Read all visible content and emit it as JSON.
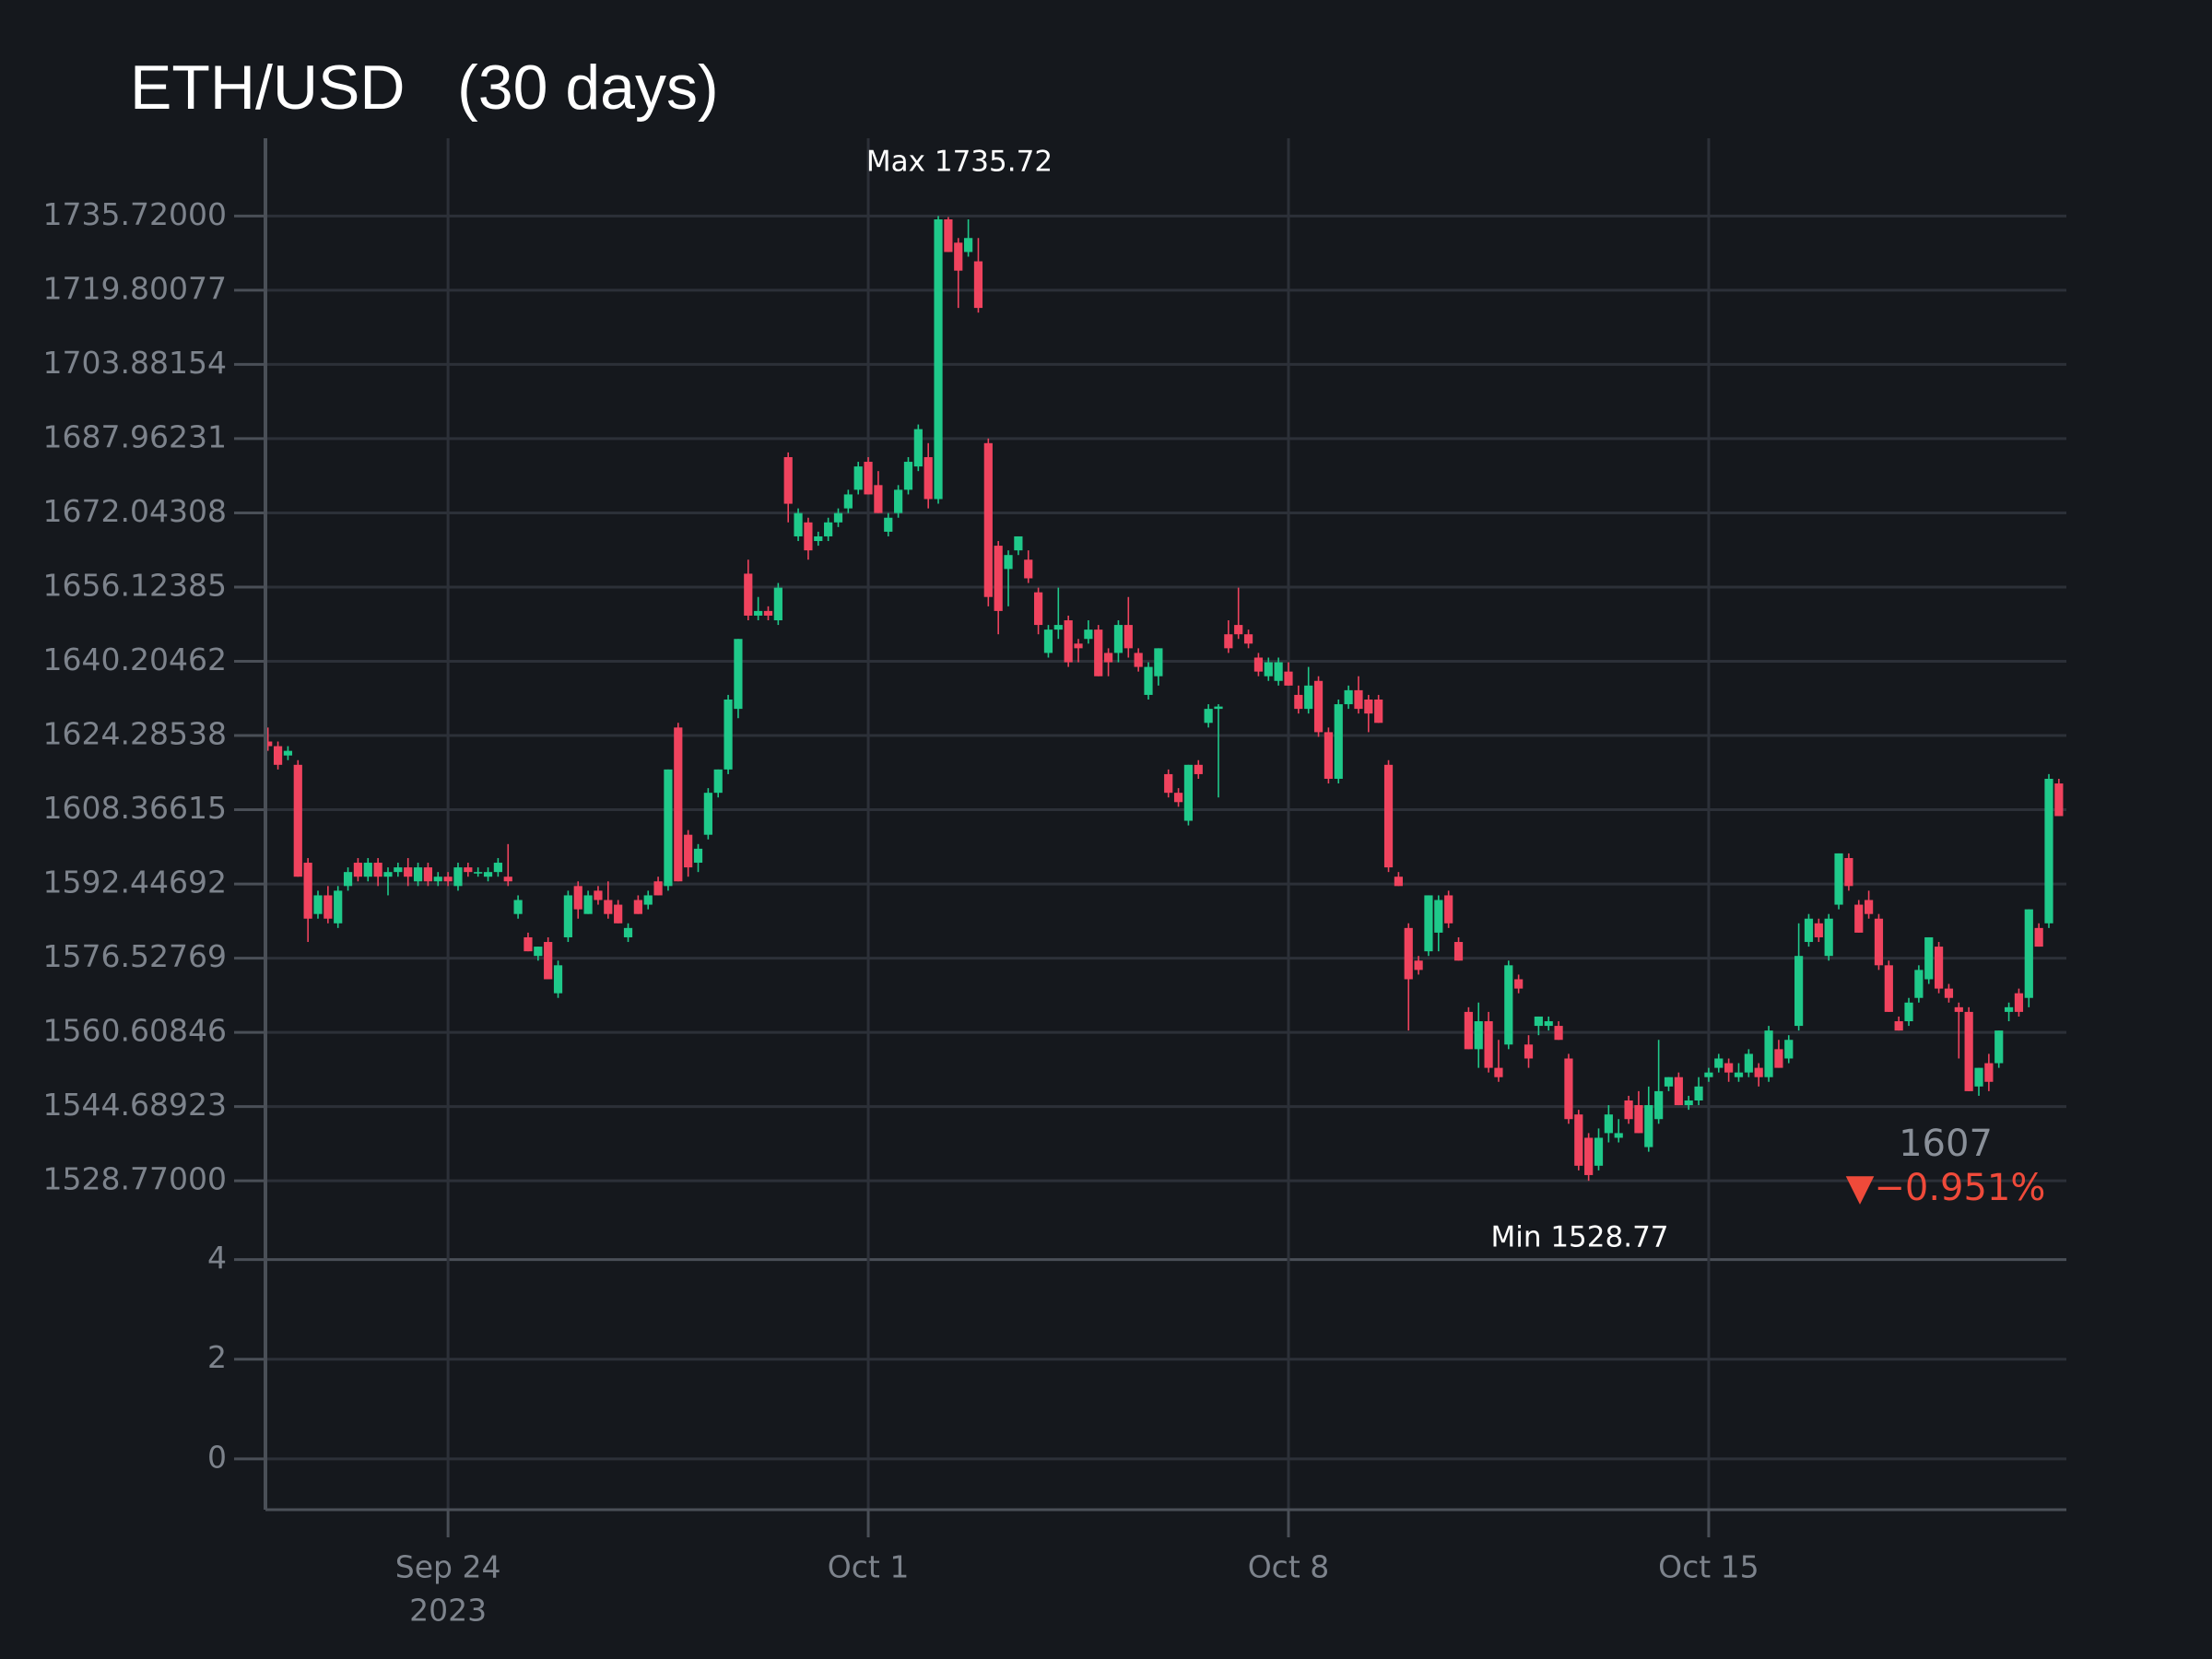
{
  "chart_data": {
    "type": "candlestick",
    "title": "ETH/USD   (30 days)",
    "increasing_color": "#1fc98a",
    "decreasing_color": "#f0435e",
    "grid": true,
    "xlim": [
      "2023-09-20 23:00",
      "2023-10-20 23:00"
    ],
    "xticks": [
      {
        "value": "2023-09-24 00:00",
        "label": "Sep 24"
      },
      {
        "value": "2023-10-01 00:00",
        "label": "Oct 1"
      },
      {
        "value": "2023-10-08 00:00",
        "label": "Oct 8"
      },
      {
        "value": "2023-10-15 00:00",
        "label": "Oct 15"
      }
    ],
    "xtick_year": "2023",
    "ylim": [
      1520.3,
      1752.4
    ],
    "yticks": [
      {
        "value": 1735.72,
        "label": "1735.72000"
      },
      1719.80077,
      1703.88154,
      1687.96231,
      1672.04308,
      1656.12385,
      1640.20462,
      1624.28538,
      1608.36615,
      1592.44692,
      1576.52769,
      1560.60846,
      1544.68923,
      {
        "value": 1528.77,
        "label": "1528.77000"
      }
    ],
    "y2lim": [
      -1.02,
      4.51
    ],
    "y2ticks": [
      0,
      2,
      4
    ],
    "annotations": [
      {
        "text": "Max 1735.72"
      },
      {
        "text": "Min 1528.77"
      }
    ],
    "indicator": {
      "value": 1607,
      "delta": {
        "value": -0.951,
        "label": "▼−0.951%"
      }
    },
    "x": [
      "2023-09-21 00:00",
      "2023-09-21 04:00",
      "2023-09-21 08:00",
      "2023-09-21 12:00",
      "2023-09-21 16:00",
      "2023-09-21 20:00",
      "2023-09-22 00:00",
      "2023-09-22 04:00",
      "2023-09-22 08:00",
      "2023-09-22 12:00",
      "2023-09-22 16:00",
      "2023-09-22 20:00",
      "2023-09-23 00:00",
      "2023-09-23 04:00",
      "2023-09-23 08:00",
      "2023-09-23 12:00",
      "2023-09-23 16:00",
      "2023-09-23 20:00",
      "2023-09-24 00:00",
      "2023-09-24 04:00",
      "2023-09-24 08:00",
      "2023-09-24 12:00",
      "2023-09-24 16:00",
      "2023-09-24 20:00",
      "2023-09-25 00:00",
      "2023-09-25 04:00",
      "2023-09-25 08:00",
      "2023-09-25 12:00",
      "2023-09-25 16:00",
      "2023-09-25 20:00",
      "2023-09-26 00:00",
      "2023-09-26 04:00",
      "2023-09-26 08:00",
      "2023-09-26 12:00",
      "2023-09-26 16:00",
      "2023-09-26 20:00",
      "2023-09-27 00:00",
      "2023-09-27 04:00",
      "2023-09-27 08:00",
      "2023-09-27 12:00",
      "2023-09-27 16:00",
      "2023-09-27 20:00",
      "2023-09-28 00:00",
      "2023-09-28 04:00",
      "2023-09-28 08:00",
      "2023-09-28 12:00",
      "2023-09-28 16:00",
      "2023-09-28 20:00",
      "2023-09-29 00:00",
      "2023-09-29 04:00",
      "2023-09-29 08:00",
      "2023-09-29 12:00",
      "2023-09-29 16:00",
      "2023-09-29 20:00",
      "2023-09-30 00:00",
      "2023-09-30 04:00",
      "2023-09-30 08:00",
      "2023-09-30 12:00",
      "2023-09-30 16:00",
      "2023-09-30 20:00",
      "2023-10-01 00:00",
      "2023-10-01 04:00",
      "2023-10-01 08:00",
      "2023-10-01 12:00",
      "2023-10-01 16:00",
      "2023-10-01 20:00",
      "2023-10-02 00:00",
      "2023-10-02 04:00",
      "2023-10-02 08:00",
      "2023-10-02 12:00",
      "2023-10-02 16:00",
      "2023-10-02 20:00",
      "2023-10-03 00:00",
      "2023-10-03 04:00",
      "2023-10-03 08:00",
      "2023-10-03 12:00",
      "2023-10-03 16:00",
      "2023-10-03 20:00",
      "2023-10-04 00:00",
      "2023-10-04 04:00",
      "2023-10-04 08:00",
      "2023-10-04 12:00",
      "2023-10-04 16:00",
      "2023-10-04 20:00",
      "2023-10-05 00:00",
      "2023-10-05 04:00",
      "2023-10-05 08:00",
      "2023-10-05 12:00",
      "2023-10-05 16:00",
      "2023-10-05 20:00",
      "2023-10-06 00:00",
      "2023-10-06 04:00",
      "2023-10-06 08:00",
      "2023-10-06 12:00",
      "2023-10-06 16:00",
      "2023-10-06 20:00",
      "2023-10-07 00:00",
      "2023-10-07 04:00",
      "2023-10-07 08:00",
      "2023-10-07 12:00",
      "2023-10-07 16:00",
      "2023-10-07 20:00",
      "2023-10-08 00:00",
      "2023-10-08 04:00",
      "2023-10-08 08:00",
      "2023-10-08 12:00",
      "2023-10-08 16:00",
      "2023-10-08 20:00",
      "2023-10-09 00:00",
      "2023-10-09 04:00",
      "2023-10-09 08:00",
      "2023-10-09 12:00",
      "2023-10-09 16:00",
      "2023-10-09 20:00",
      "2023-10-10 00:00",
      "2023-10-10 04:00",
      "2023-10-10 08:00",
      "2023-10-10 12:00",
      "2023-10-10 16:00",
      "2023-10-10 20:00",
      "2023-10-11 00:00",
      "2023-10-11 04:00",
      "2023-10-11 08:00",
      "2023-10-11 12:00",
      "2023-10-11 16:00",
      "2023-10-11 20:00",
      "2023-10-12 00:00",
      "2023-10-12 04:00",
      "2023-10-12 08:00",
      "2023-10-12 12:00",
      "2023-10-12 16:00",
      "2023-10-12 20:00",
      "2023-10-13 00:00",
      "2023-10-13 04:00",
      "2023-10-13 08:00",
      "2023-10-13 12:00",
      "2023-10-13 16:00",
      "2023-10-13 20:00",
      "2023-10-14 00:00",
      "2023-10-14 04:00",
      "2023-10-14 08:00",
      "2023-10-14 12:00",
      "2023-10-14 16:00",
      "2023-10-14 20:00",
      "2023-10-15 00:00",
      "2023-10-15 04:00",
      "2023-10-15 08:00",
      "2023-10-15 12:00",
      "2023-10-15 16:00",
      "2023-10-15 20:00",
      "2023-10-16 00:00",
      "2023-10-16 04:00",
      "2023-10-16 08:00",
      "2023-10-16 12:00",
      "2023-10-16 16:00",
      "2023-10-16 20:00",
      "2023-10-17 00:00",
      "2023-10-17 04:00",
      "2023-10-17 08:00",
      "2023-10-17 12:00",
      "2023-10-17 16:00",
      "2023-10-17 20:00",
      "2023-10-18 00:00",
      "2023-10-18 04:00",
      "2023-10-18 08:00",
      "2023-10-18 12:00",
      "2023-10-18 16:00",
      "2023-10-18 20:00",
      "2023-10-19 00:00",
      "2023-10-19 04:00",
      "2023-10-19 08:00",
      "2023-10-19 12:00",
      "2023-10-19 16:00",
      "2023-10-19 20:00",
      "2023-10-20 00:00",
      "2023-10-20 04:00",
      "2023-10-20 08:00",
      "2023-10-20 12:00",
      "2023-10-20 16:00",
      "2023-10-20 20:00"
    ],
    "open": [
      1623,
      1622,
      1620,
      1618,
      1597,
      1586,
      1590,
      1584,
      1592,
      1597,
      1594,
      1597,
      1594,
      1595,
      1596,
      1593,
      1596,
      1593,
      1594,
      1592,
      1596,
      1595,
      1594,
      1595,
      1594,
      1586,
      1581,
      1577,
      1580,
      1569,
      1581,
      1592,
      1586,
      1591,
      1589,
      1588,
      1581,
      1589,
      1588,
      1593,
      1592,
      1626,
      1603,
      1597,
      1603,
      1612,
      1617,
      1630,
      1659,
      1650,
      1651,
      1649,
      1684,
      1667,
      1670,
      1666,
      1667,
      1670,
      1673,
      1677,
      1683,
      1678,
      1668,
      1672,
      1677,
      1682,
      1684,
      1675,
      1735,
      1730,
      1728,
      1726,
      1687,
      1665,
      1660,
      1664,
      1662,
      1655,
      1642,
      1647,
      1649,
      1644,
      1645,
      1647,
      1642,
      1642,
      1648,
      1642,
      1633,
      1637,
      1616,
      1612,
      1606,
      1618,
      1627,
      1630,
      1646,
      1648,
      1646,
      1641,
      1637,
      1636,
      1638,
      1633,
      1630,
      1636,
      1625,
      1615,
      1631,
      1634,
      1632,
      1632,
      1618,
      1594,
      1583,
      1576,
      1578,
      1582,
      1590,
      1580,
      1565,
      1557,
      1563,
      1553,
      1558,
      1572,
      1558,
      1562,
      1562,
      1562,
      1555,
      1543,
      1538,
      1532,
      1539,
      1538,
      1546,
      1545,
      1536,
      1542,
      1549,
      1551,
      1545,
      1546,
      1551,
      1553,
      1554,
      1551,
      1552,
      1553,
      1551,
      1557,
      1555,
      1562,
      1580,
      1584,
      1577,
      1588,
      1598,
      1588,
      1589,
      1585,
      1575,
      1563,
      1563,
      1568,
      1572,
      1579,
      1570,
      1566,
      1565,
      1549,
      1554,
      1554,
      1565,
      1569,
      1568,
      1583,
      1584,
      1614
    ],
    "high": [
      1626,
      1623,
      1622,
      1619,
      1598,
      1591,
      1592,
      1592,
      1596,
      1598,
      1598,
      1598,
      1596,
      1597,
      1598,
      1597,
      1597,
      1595,
      1595,
      1597,
      1597,
      1596,
      1596,
      1598,
      1601,
      1590,
      1582,
      1579,
      1581,
      1576,
      1591,
      1593,
      1591,
      1592,
      1593,
      1589,
      1584,
      1590,
      1591,
      1594,
      1617,
      1627,
      1604,
      1601,
      1613,
      1617,
      1633,
      1645,
      1662,
      1654,
      1652,
      1657,
      1685,
      1673,
      1671,
      1668,
      1671,
      1673,
      1677,
      1683,
      1684,
      1681,
      1672,
      1678,
      1684,
      1691,
      1687,
      1735.72,
      1735.5,
      1731,
      1735,
      1731,
      1688,
      1666,
      1664,
      1667,
      1664,
      1656,
      1648,
      1656,
      1650,
      1645,
      1649,
      1648,
      1643,
      1649,
      1654,
      1643,
      1640,
      1643,
      1617,
      1613,
      1618,
      1619,
      1631,
      1631,
      1649,
      1656,
      1647,
      1642,
      1641,
      1641,
      1640,
      1635,
      1639,
      1637,
      1626,
      1632,
      1635,
      1637,
      1633,
      1633,
      1619,
      1595,
      1584,
      1577,
      1590,
      1590,
      1591,
      1581,
      1566,
      1567,
      1565,
      1559,
      1576,
      1573,
      1560,
      1564,
      1564,
      1563,
      1556,
      1544,
      1539,
      1540,
      1545,
      1542,
      1547,
      1548,
      1549,
      1559,
      1551,
      1552,
      1547,
      1551,
      1553,
      1556,
      1555,
      1554,
      1557,
      1554,
      1562,
      1559,
      1560,
      1584,
      1586,
      1585,
      1586,
      1599,
      1599,
      1589,
      1591,
      1586,
      1576,
      1564,
      1568,
      1575,
      1581,
      1580,
      1571,
      1567,
      1566,
      1553,
      1556,
      1561,
      1567,
      1570,
      1587,
      1584,
      1616,
      1615
    ],
    "low": [
      1621,
      1617,
      1619,
      1594,
      1580,
      1585,
      1584,
      1583,
      1591,
      1593,
      1593,
      1592,
      1590,
      1594,
      1592,
      1592,
      1592,
      1592,
      1592,
      1591,
      1594,
      1594,
      1593,
      1594,
      1592,
      1585,
      1578,
      1576,
      1572,
      1568,
      1580,
      1585,
      1586,
      1588,
      1585,
      1584,
      1580,
      1586,
      1587,
      1590,
      1591,
      1593,
      1594,
      1595,
      1602,
      1611,
      1616,
      1628,
      1649,
      1649,
      1649,
      1648,
      1670,
      1666,
      1662,
      1665,
      1666,
      1669,
      1672,
      1676,
      1676,
      1672,
      1667,
      1671,
      1676,
      1681,
      1673,
      1674,
      1728,
      1716,
      1727,
      1715,
      1652,
      1646,
      1652,
      1663,
      1657,
      1646,
      1641,
      1645,
      1639,
      1640,
      1644,
      1637,
      1637,
      1640,
      1641,
      1638,
      1632,
      1635,
      1611,
      1609,
      1605,
      1615,
      1626,
      1611,
      1642,
      1645,
      1643,
      1637,
      1636,
      1635,
      1635,
      1629,
      1629,
      1624,
      1614,
      1614,
      1630,
      1629,
      1625,
      1627,
      1595,
      1592,
      1561,
      1573,
      1577,
      1578,
      1583,
      1576,
      1557,
      1553,
      1552,
      1550,
      1557,
      1569,
      1553,
      1560,
      1561,
      1559,
      1541,
      1531,
      1528.77,
      1531,
      1537,
      1537,
      1541,
      1539,
      1535,
      1541,
      1548,
      1545,
      1544,
      1545,
      1550,
      1552,
      1550,
      1550,
      1551,
      1549,
      1550,
      1553,
      1554,
      1561,
      1579,
      1580,
      1576,
      1587,
      1591,
      1582,
      1585,
      1574,
      1565,
      1561,
      1562,
      1567,
      1571,
      1569,
      1567,
      1555,
      1548,
      1547,
      1548,
      1553,
      1563,
      1564,
      1566,
      1579,
      1583,
      1607
    ],
    "close": [
      1622,
      1618,
      1621,
      1594,
      1585,
      1590,
      1585,
      1591,
      1595,
      1594,
      1597,
      1594,
      1595,
      1596,
      1594,
      1596,
      1593,
      1594,
      1593,
      1596,
      1595,
      1595,
      1595,
      1597,
      1593,
      1589,
      1578,
      1579,
      1572,
      1575,
      1590,
      1587,
      1590,
      1589,
      1586,
      1584,
      1583,
      1586,
      1590,
      1590,
      1617,
      1593,
      1596,
      1600,
      1612,
      1617,
      1632,
      1645,
      1650,
      1651,
      1650,
      1656,
      1674,
      1672,
      1664,
      1667,
      1670,
      1672,
      1676,
      1682,
      1676,
      1672,
      1671,
      1677,
      1683,
      1690,
      1675,
      1735,
      1728,
      1724,
      1731,
      1716,
      1654,
      1651,
      1663,
      1667,
      1658,
      1648,
      1647,
      1648,
      1640,
      1643,
      1647,
      1637,
      1640,
      1648,
      1643,
      1639,
      1639,
      1643,
      1612,
      1610,
      1618,
      1616,
      1630,
      1630.5,
      1643,
      1646,
      1644,
      1638,
      1640,
      1640,
      1635,
      1630,
      1635,
      1625,
      1615,
      1631,
      1634,
      1630,
      1629,
      1627,
      1596,
      1592,
      1572,
      1574,
      1590,
      1589,
      1584,
      1576,
      1557,
      1563,
      1553,
      1551,
      1575,
      1570,
      1555,
      1564,
      1563,
      1559,
      1542,
      1532,
      1530,
      1538,
      1543,
      1539,
      1542,
      1539,
      1545,
      1548,
      1551,
      1545,
      1546,
      1549,
      1552,
      1555,
      1552,
      1552,
      1556,
      1551,
      1561,
      1553,
      1559,
      1577,
      1585,
      1581,
      1585,
      1599,
      1592,
      1582,
      1586,
      1575,
      1565,
      1561,
      1567,
      1574,
      1581,
      1570,
      1568,
      1565,
      1548,
      1553,
      1550,
      1561,
      1566,
      1565,
      1587,
      1579,
      1615,
      1607
    ]
  }
}
